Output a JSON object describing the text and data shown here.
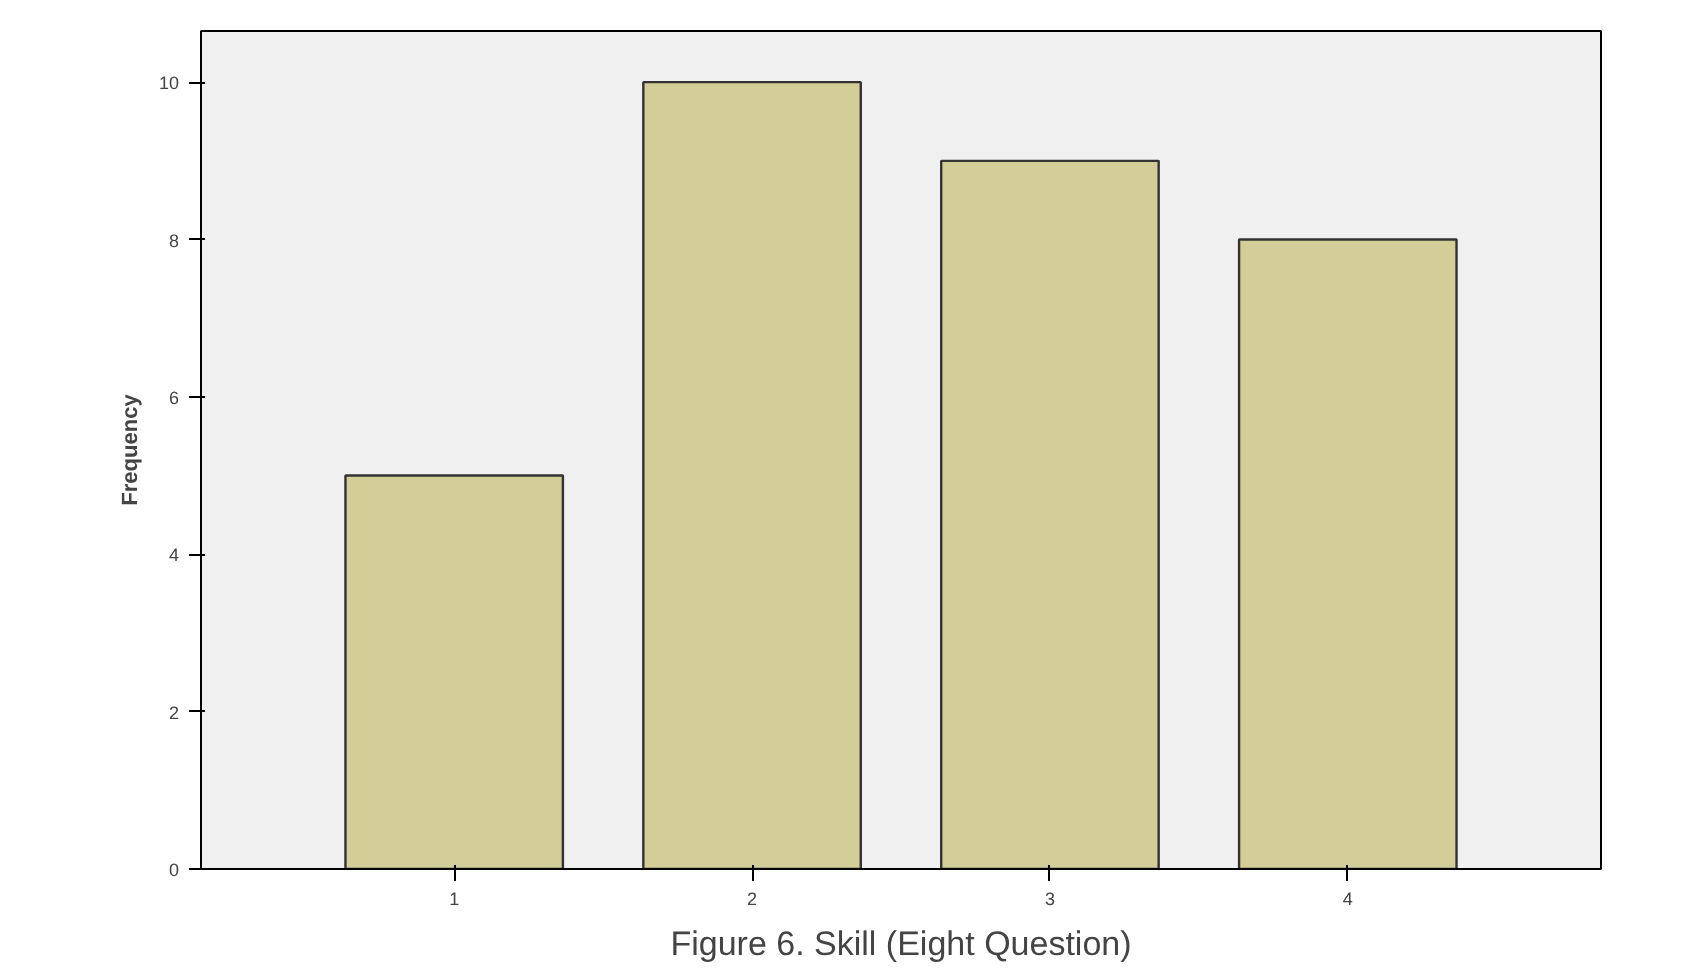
{
  "chart_data": {
    "type": "bar",
    "title": "Figure 6. Skill (Eight Question)",
    "ylabel": "Frequency",
    "categories": [
      "1",
      "2",
      "3",
      "4"
    ],
    "values": [
      5,
      10,
      9,
      8
    ],
    "color": "#d3ce97",
    "ylim": [
      0,
      10.65
    ],
    "yticks": [
      0,
      2,
      4,
      6,
      8,
      10
    ],
    "grid": false
  }
}
